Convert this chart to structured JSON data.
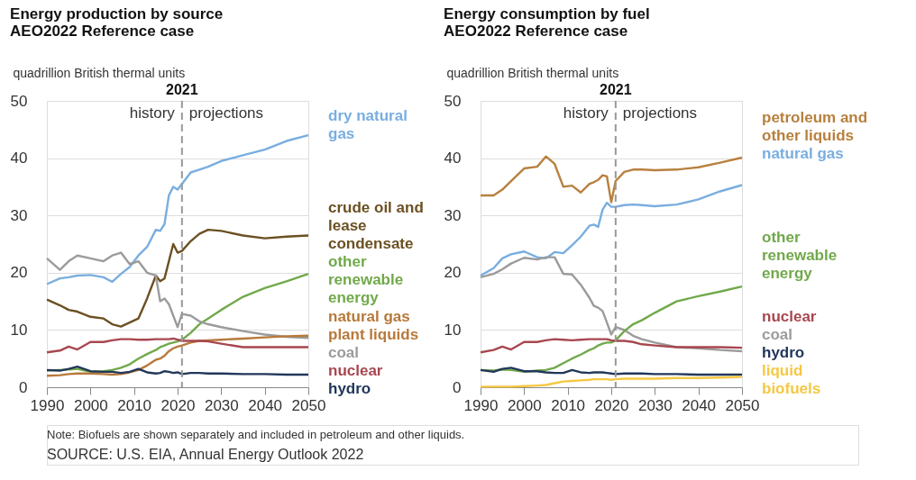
{
  "chart_data": [
    {
      "type": "line",
      "title": "Energy production by source",
      "subtitle": "AEO2022 Reference case",
      "ylabel": "quadrillion British thermal units",
      "x": [
        1990,
        1993,
        1995,
        1997,
        2000,
        2003,
        2005,
        2007,
        2009,
        2011,
        2013,
        2015,
        2016,
        2017,
        2018,
        2019,
        2020,
        2021,
        2023,
        2025,
        2027,
        2030,
        2035,
        2040,
        2045,
        2050
      ],
      "series": [
        {
          "name": "dry natural gas",
          "color": "#79aee0",
          "values": [
            18.0,
            19.0,
            19.2,
            19.5,
            19.6,
            19.2,
            18.4,
            19.8,
            21.0,
            23.0,
            24.5,
            27.5,
            27.3,
            28.5,
            33.5,
            35.0,
            34.5,
            35.5,
            37.5,
            38.0,
            38.5,
            39.5,
            40.5,
            41.5,
            43.0,
            44.0
          ]
        },
        {
          "name": "crude oil and lease condensate",
          "color": "#6b5022",
          "values": [
            15.3,
            14.3,
            13.5,
            13.2,
            12.3,
            12.0,
            11.0,
            10.6,
            11.3,
            12.0,
            15.5,
            19.5,
            18.5,
            19.0,
            22.0,
            25.0,
            23.5,
            23.8,
            25.5,
            26.8,
            27.5,
            27.3,
            26.5,
            26.0,
            26.3,
            26.5
          ]
        },
        {
          "name": "other renewable energy",
          "color": "#71a94a",
          "values": [
            2.9,
            3.0,
            3.1,
            3.2,
            2.7,
            2.8,
            3.0,
            3.4,
            4.0,
            5.0,
            5.8,
            6.5,
            7.0,
            7.3,
            7.6,
            7.8,
            8.0,
            8.3,
            9.5,
            11.0,
            12.0,
            13.5,
            15.8,
            17.3,
            18.5,
            19.8
          ]
        },
        {
          "name": "coal",
          "color": "#9b9b9b",
          "values": [
            22.5,
            20.5,
            22.0,
            23.0,
            22.5,
            22.0,
            23.0,
            23.5,
            21.5,
            22.0,
            20.0,
            19.5,
            15.0,
            15.5,
            14.5,
            12.5,
            10.5,
            12.8,
            12.5,
            11.5,
            11.0,
            10.5,
            9.8,
            9.2,
            8.8,
            8.6
          ]
        },
        {
          "name": "natural gas plant liquids",
          "color": "#b7793a",
          "values": [
            2.0,
            2.1,
            2.3,
            2.4,
            2.4,
            2.3,
            2.2,
            2.3,
            2.6,
            3.0,
            3.8,
            4.8,
            5.0,
            5.5,
            6.3,
            6.8,
            7.1,
            7.3,
            7.8,
            8.1,
            8.2,
            8.3,
            8.5,
            8.7,
            8.9,
            9.0
          ]
        },
        {
          "name": "nuclear",
          "color": "#a8474f",
          "values": [
            6.1,
            6.4,
            7.1,
            6.6,
            7.9,
            7.9,
            8.2,
            8.4,
            8.4,
            8.3,
            8.3,
            8.4,
            8.4,
            8.4,
            8.4,
            8.5,
            8.3,
            8.1,
            8.1,
            8.1,
            8.0,
            7.6,
            7.0,
            7.0,
            7.0,
            7.0
          ]
        },
        {
          "name": "hydro",
          "color": "#22375a",
          "values": [
            3.0,
            2.9,
            3.2,
            3.6,
            2.8,
            2.7,
            2.7,
            2.5,
            2.7,
            3.2,
            2.6,
            2.4,
            2.5,
            2.8,
            2.7,
            2.5,
            2.6,
            2.3,
            2.5,
            2.5,
            2.4,
            2.4,
            2.3,
            2.3,
            2.2,
            2.2
          ]
        }
      ],
      "xlim": [
        1990,
        2050
      ],
      "xticks": [
        1990,
        2000,
        2010,
        2020,
        2030,
        2040,
        2050
      ],
      "ylim": [
        0,
        50
      ],
      "yticks": [
        0,
        10,
        20,
        30,
        40,
        50
      ],
      "ref_lines": [
        {
          "axis": "x",
          "value": 2021,
          "label": "2021",
          "color": "#999999",
          "line_style": "dashed"
        }
      ],
      "annotations": [
        "history",
        "projections",
        "Note: Biofuels are shown separately and included in petroleum and other liquids.",
        "SOURCE: U.S. EIA, Annual Energy Outlook 2022"
      ],
      "grid": "y",
      "legend": false,
      "marker": "none",
      "line_style": "solid"
    },
    {
      "type": "line",
      "title": "Energy consumption by fuel",
      "subtitle": "AEO2022 Reference case",
      "ylabel": "quadrillion British thermal units",
      "x": [
        1990,
        1993,
        1995,
        1997,
        2000,
        2003,
        2005,
        2007,
        2009,
        2011,
        2013,
        2015,
        2016,
        2017,
        2018,
        2019,
        2020,
        2021,
        2023,
        2025,
        2027,
        2030,
        2035,
        2040,
        2045,
        2050
      ],
      "series": [
        {
          "name": "petroleum and other liquids",
          "color": "#b8803e",
          "values": [
            33.5,
            33.5,
            34.5,
            36.0,
            38.2,
            38.5,
            40.3,
            39.0,
            35.0,
            35.2,
            34.0,
            35.5,
            35.8,
            36.2,
            37.0,
            36.8,
            32.3,
            36.0,
            37.6,
            38.0,
            38.0,
            37.9,
            38.0,
            38.4,
            39.2,
            40.1
          ]
        },
        {
          "name": "natural gas",
          "color": "#79aee0",
          "values": [
            19.5,
            20.8,
            22.5,
            23.2,
            23.7,
            22.7,
            22.5,
            23.6,
            23.4,
            24.8,
            26.3,
            28.2,
            28.4,
            28.0,
            31.0,
            32.2,
            31.5,
            31.5,
            31.8,
            31.9,
            31.8,
            31.6,
            31.9,
            32.8,
            34.2,
            35.3
          ]
        },
        {
          "name": "coal",
          "color": "#9b9b9b",
          "values": [
            19.2,
            19.8,
            20.6,
            21.6,
            22.6,
            22.3,
            22.7,
            22.7,
            19.8,
            19.7,
            17.9,
            15.6,
            14.2,
            13.9,
            13.3,
            11.3,
            9.2,
            10.5,
            10.0,
            9.0,
            8.4,
            7.8,
            7.0,
            6.8,
            6.5,
            6.3
          ]
        },
        {
          "name": "other renewable energy",
          "color": "#71a94a",
          "values": [
            3.0,
            2.9,
            3.1,
            3.0,
            2.7,
            2.9,
            3.0,
            3.4,
            4.2,
            5.0,
            5.7,
            6.5,
            6.8,
            7.3,
            7.6,
            7.8,
            7.8,
            8.2,
            9.8,
            11.0,
            11.7,
            13.0,
            15.0,
            15.9,
            16.7,
            17.6
          ]
        },
        {
          "name": "nuclear",
          "color": "#a8474f",
          "values": [
            6.1,
            6.5,
            7.1,
            6.6,
            7.9,
            7.9,
            8.2,
            8.4,
            8.3,
            8.2,
            8.3,
            8.4,
            8.4,
            8.4,
            8.4,
            8.4,
            8.2,
            8.1,
            8.1,
            7.9,
            7.5,
            7.3,
            7.0,
            7.0,
            7.0,
            6.9
          ]
        },
        {
          "name": "hydro",
          "color": "#22375a",
          "values": [
            3.0,
            2.7,
            3.2,
            3.4,
            2.8,
            2.8,
            2.6,
            2.5,
            2.5,
            3.0,
            2.6,
            2.5,
            2.6,
            2.6,
            2.6,
            2.5,
            2.4,
            2.3,
            2.4,
            2.4,
            2.4,
            2.3,
            2.3,
            2.2,
            2.2,
            2.2
          ]
        },
        {
          "name": "liquid biofuels",
          "color": "#f5c842",
          "values": [
            0.1,
            0.1,
            0.1,
            0.1,
            0.2,
            0.3,
            0.4,
            0.7,
            1.0,
            1.1,
            1.2,
            1.3,
            1.4,
            1.4,
            1.4,
            1.4,
            1.3,
            1.4,
            1.5,
            1.5,
            1.5,
            1.5,
            1.6,
            1.6,
            1.7,
            1.8
          ]
        }
      ],
      "xlim": [
        1990,
        2050
      ],
      "xticks": [
        1990,
        2000,
        2010,
        2020,
        2030,
        2040,
        2050
      ],
      "ylim": [
        0,
        50
      ],
      "yticks": [
        0,
        10,
        20,
        30,
        40,
        50
      ],
      "ref_lines": [
        {
          "axis": "x",
          "value": 2021,
          "label": "2021",
          "color": "#999999",
          "line_style": "dashed"
        }
      ],
      "annotations": [
        "history",
        "projections"
      ],
      "grid": "y",
      "legend": false,
      "marker": "none",
      "line_style": "solid"
    }
  ]
}
